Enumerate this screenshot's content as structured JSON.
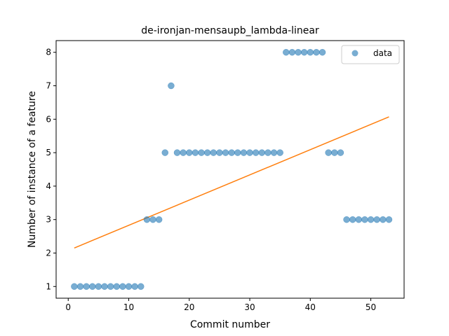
{
  "chart_data": {
    "type": "scatter",
    "title": "de-ironjan-mensaupb_lambda-linear",
    "xlabel": "Commit number",
    "ylabel": "Number of instance of a feature",
    "xlim": [
      -2,
      55.5
    ],
    "ylim": [
      0.65,
      8.35
    ],
    "xticks": [
      0,
      10,
      20,
      30,
      40,
      50
    ],
    "yticks": [
      1,
      2,
      3,
      4,
      5,
      6,
      7,
      8
    ],
    "grid": false,
    "legend_position": "top-right",
    "series": [
      {
        "name": "data",
        "kind": "scatter",
        "color": "#1f77b4",
        "x": [
          1,
          2,
          3,
          4,
          5,
          6,
          7,
          8,
          9,
          10,
          11,
          12,
          13,
          14,
          15,
          16,
          17,
          18,
          19,
          20,
          21,
          22,
          23,
          24,
          25,
          26,
          27,
          28,
          29,
          30,
          31,
          32,
          33,
          34,
          35,
          36,
          37,
          38,
          39,
          40,
          41,
          42,
          43,
          44,
          45,
          46,
          47,
          48,
          49,
          50,
          51,
          52,
          53
        ],
        "y": [
          1,
          1,
          1,
          1,
          1,
          1,
          1,
          1,
          1,
          1,
          1,
          1,
          3,
          3,
          3,
          5,
          7,
          5,
          5,
          5,
          5,
          5,
          5,
          5,
          5,
          5,
          5,
          5,
          5,
          5,
          5,
          5,
          5,
          5,
          5,
          8,
          8,
          8,
          8,
          8,
          8,
          8,
          5,
          5,
          5,
          3,
          3,
          3,
          3,
          3,
          3,
          3,
          3
        ]
      },
      {
        "kind": "line",
        "color": "#ff7f0e",
        "x": [
          1,
          53
        ],
        "y": [
          2.15,
          6.07
        ]
      }
    ]
  }
}
